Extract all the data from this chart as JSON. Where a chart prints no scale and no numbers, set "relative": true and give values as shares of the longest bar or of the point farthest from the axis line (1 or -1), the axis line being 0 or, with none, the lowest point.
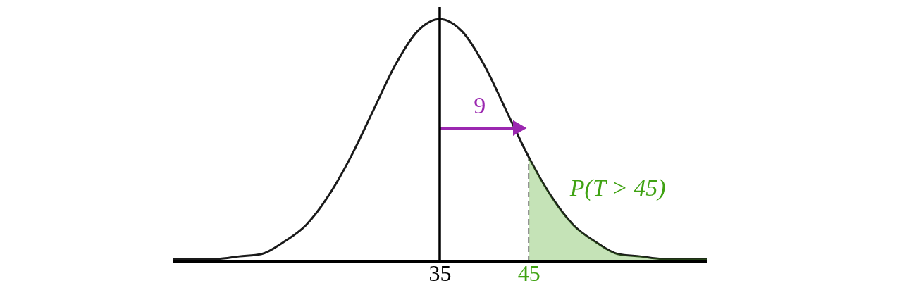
{
  "chart_data": {
    "type": "line",
    "relative": true,
    "x": [
      5,
      10,
      12.5,
      15,
      17.5,
      20,
      22.5,
      25,
      27.5,
      30,
      32.5,
      35,
      37.5,
      40,
      42.5,
      45,
      47.5,
      50,
      52.5,
      55,
      57.5,
      60,
      65
    ],
    "series": [
      {
        "color": "#1a1a1a",
        "values": [
          0.01,
          0.01,
          0.02,
          0.03,
          0.08,
          0.15,
          0.27,
          0.43,
          0.62,
          0.81,
          0.95,
          1,
          0.95,
          0.81,
          0.62,
          0.43,
          0.27,
          0.15,
          0.08,
          0.03,
          0.02,
          0.01,
          0.01
        ]
      },
      {
        "type": "area",
        "color": "#3fa212",
        "x": [
          45,
          47.5,
          50,
          52.5,
          55,
          57.5,
          60,
          65
        ],
        "values": [
          0.43,
          0.27,
          0.15,
          0.08,
          0.03,
          0.02,
          0.01,
          0.01
        ]
      },
      {
        "type": "line",
        "color": "#000000",
        "line_style": "dashed",
        "x": [
          45,
          45
        ],
        "values": [
          0,
          0.43
        ]
      },
      {
        "type": "line",
        "color": "#9b27b0",
        "marker": "triangle",
        "x": [
          35,
          44
        ],
        "values": [
          0.55,
          0.55
        ]
      }
    ],
    "xlim": [
      5,
      65
    ],
    "xticks": [
      35,
      45
    ],
    "ref_lines": [
      {
        "axis": "x",
        "value": 35,
        "color": "#000000",
        "line_style": "solid"
      }
    ],
    "annotations": [
      "9",
      "P(T > 45)"
    ],
    "grid": false,
    "marker": "none",
    "line_style": "solid"
  }
}
